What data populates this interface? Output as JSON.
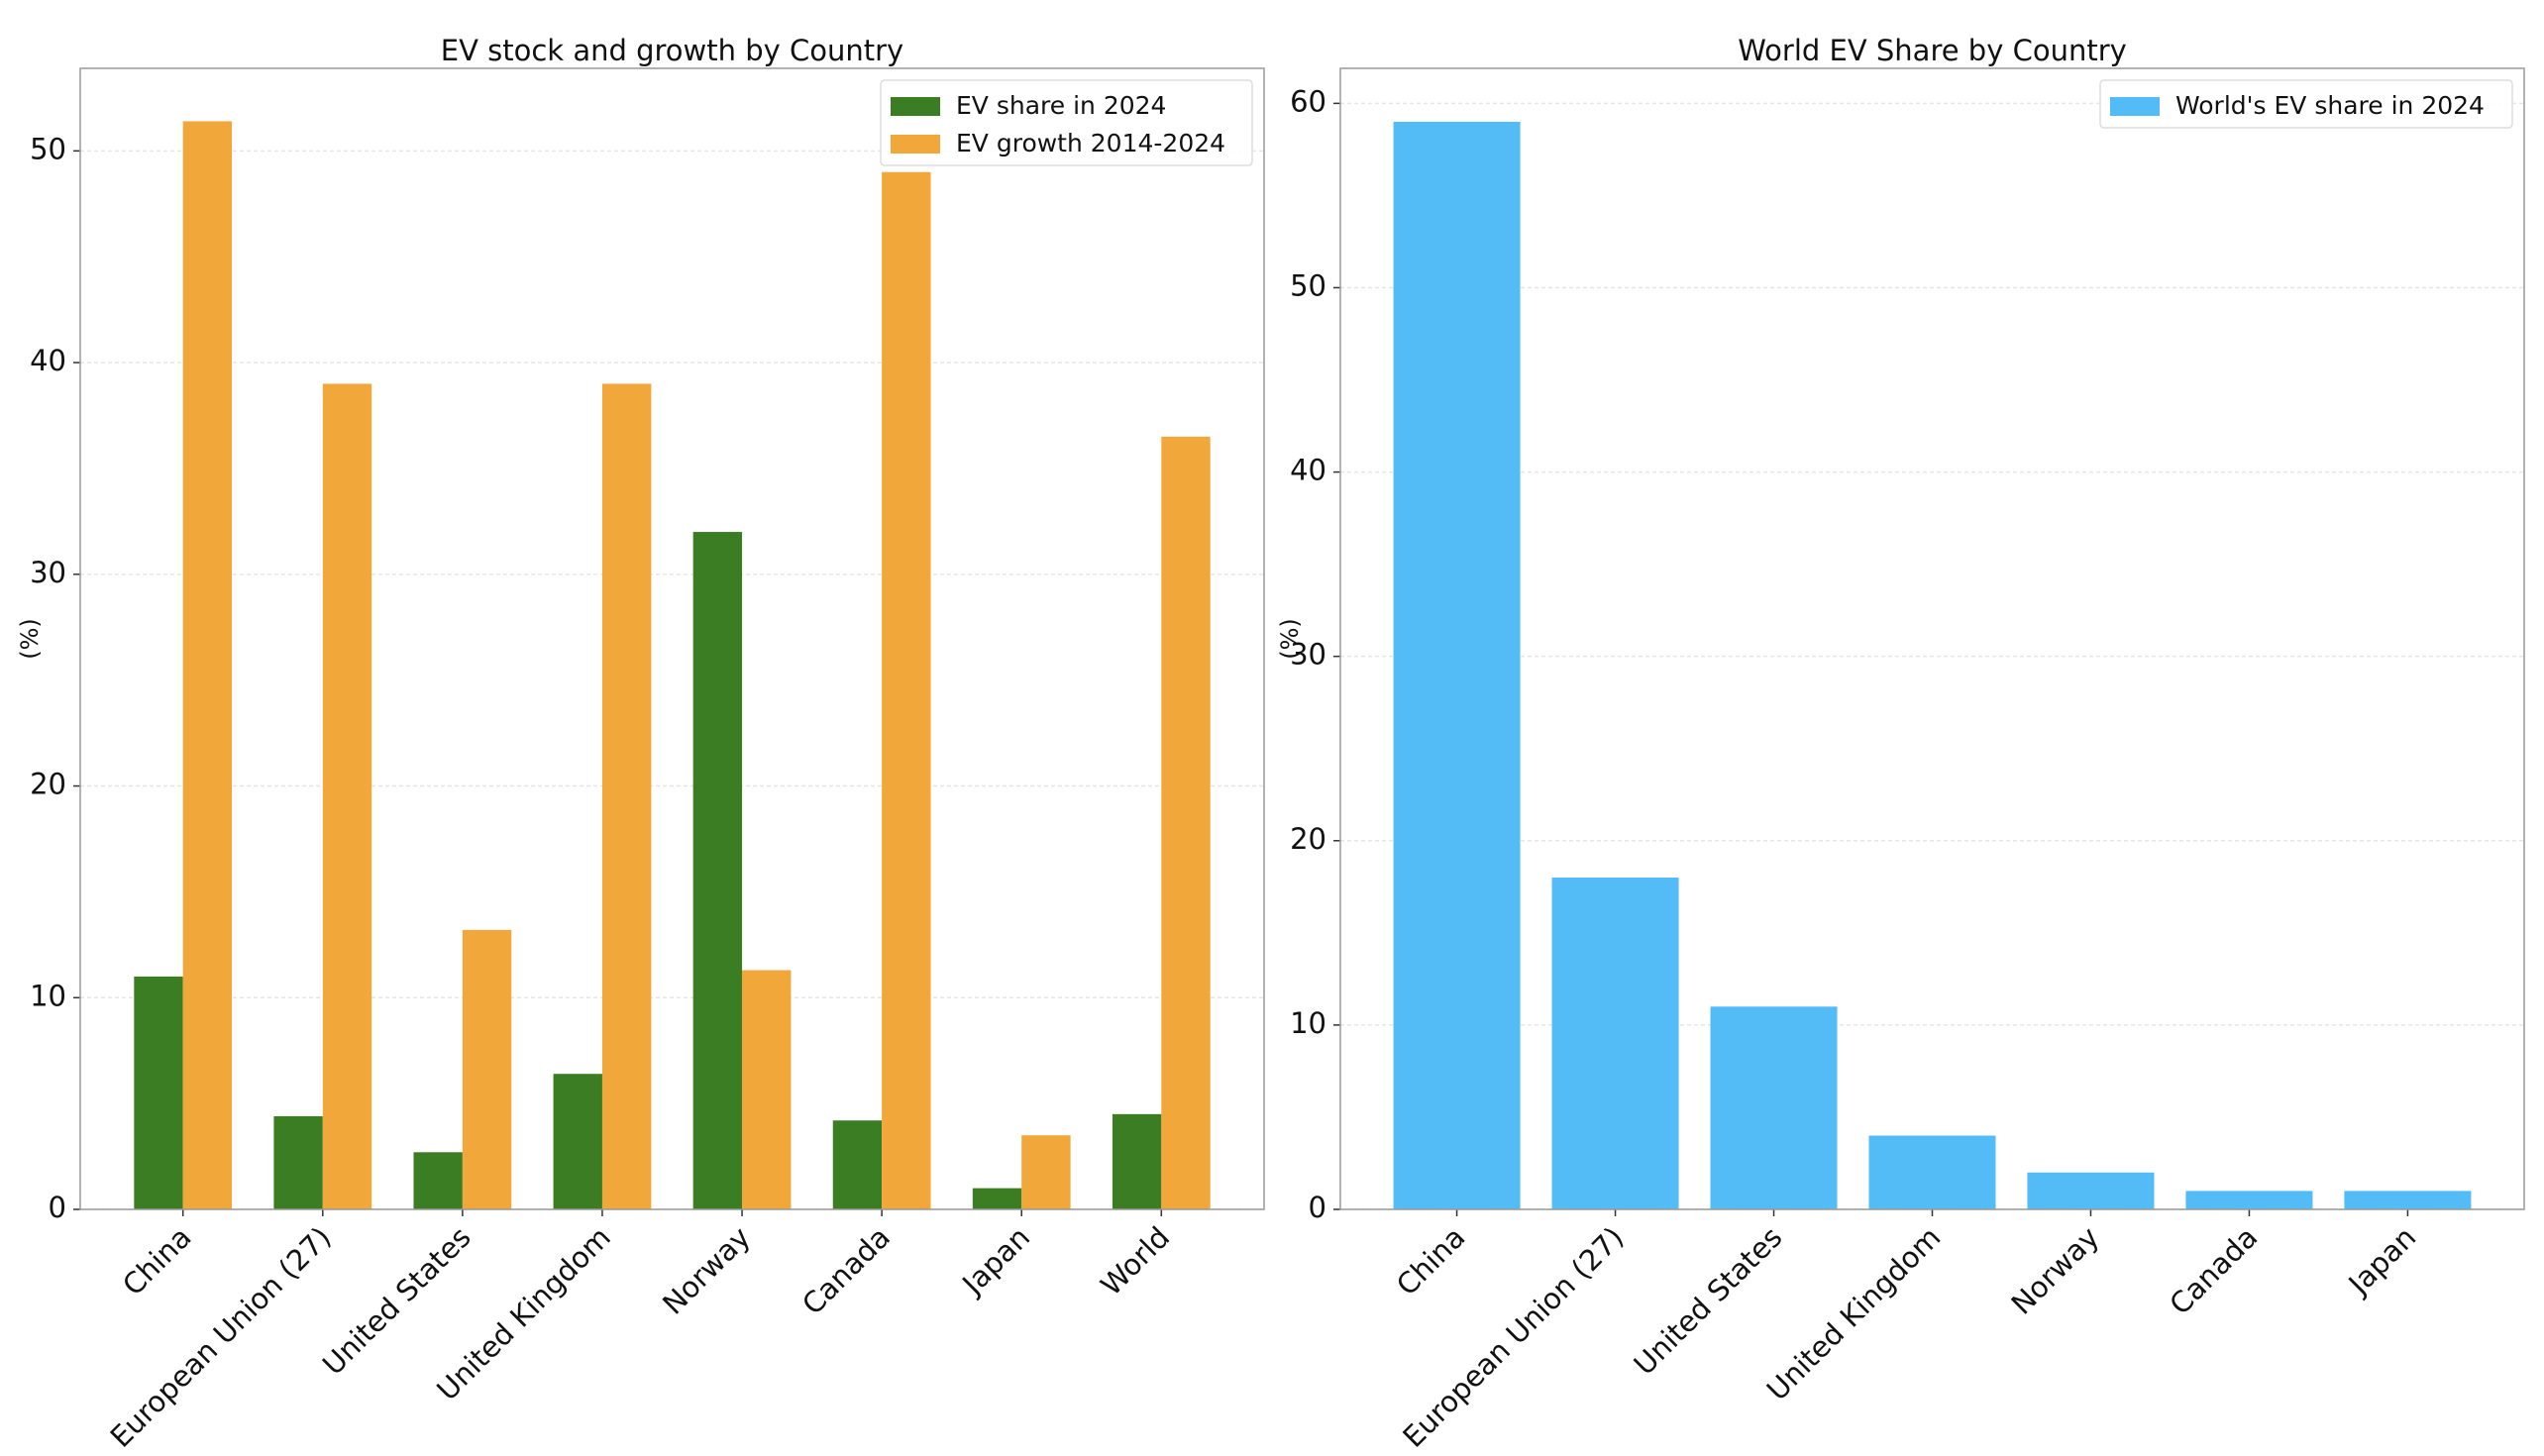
{
  "chart_data": [
    {
      "type": "bar",
      "title": "EV stock and growth by Country",
      "ylabel": "(%)",
      "categories": [
        "China",
        "European Union (27)",
        "United States",
        "United Kingdom",
        "Norway",
        "Canada",
        "Japan",
        "World"
      ],
      "series": [
        {
          "name": "EV share in 2024",
          "color": "#3a7d22",
          "values": [
            11.0,
            4.4,
            2.7,
            6.4,
            32.0,
            4.2,
            1.0,
            4.5
          ]
        },
        {
          "name": "EV growth 2014-2024",
          "color": "#f2a73b",
          "values": [
            51.4,
            39.0,
            13.2,
            39.0,
            11.3,
            49.0,
            3.5,
            36.5
          ]
        }
      ],
      "ylim": [
        0,
        53.9
      ],
      "yticks": [
        0,
        10,
        20,
        30,
        40,
        50
      ],
      "grid": true,
      "legend": "upper right"
    },
    {
      "type": "bar",
      "title": "World EV Share by Country",
      "ylabel": "(%)",
      "categories": [
        "China",
        "European Union (27)",
        "United States",
        "United Kingdom",
        "Norway",
        "Canada",
        "Japan"
      ],
      "series": [
        {
          "name": "World's EV share in 2024",
          "color": "#53bbf5",
          "values": [
            59,
            18,
            11,
            4,
            2,
            1,
            1
          ]
        }
      ],
      "ylim": [
        0,
        61.9
      ],
      "yticks": [
        0,
        10,
        20,
        30,
        40,
        50,
        60
      ],
      "grid": true,
      "legend": "upper right"
    }
  ]
}
